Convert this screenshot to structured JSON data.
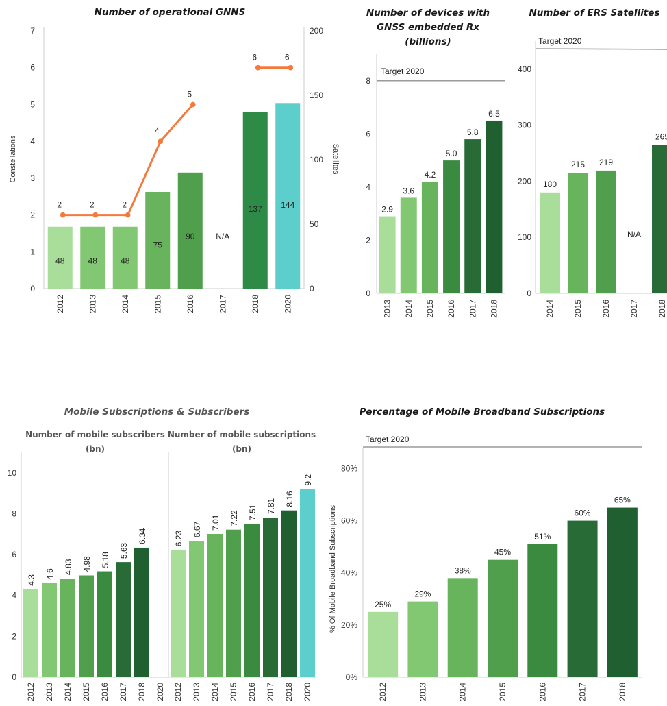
{
  "colors": {
    "shades": [
      "#a8dd9a",
      "#82c872",
      "#67b45c",
      "#4f9f4c",
      "#3a8a40",
      "#286b36",
      "#1f5f30"
    ],
    "green_dark": "#2e8b47",
    "teal": "#5ccfcc",
    "orange": "#f47a3c",
    "target_line": "#9a9a9a",
    "axis": "#cccccc"
  },
  "chart_data": [
    {
      "id": "gnns",
      "type": "bar",
      "title": "Number of operational GNNS",
      "ylabel": "Constellations",
      "y2label": "Satellites",
      "categories": [
        "2012",
        "2013",
        "2014",
        "2015",
        "2016",
        "2017",
        "2018",
        "2020"
      ],
      "ylim": [
        0,
        7
      ],
      "yticks": [
        "0",
        "1",
        "2",
        "3",
        "4",
        "5",
        "6",
        "7"
      ],
      "y2lim": [
        0,
        200
      ],
      "y2ticks": [
        "0",
        "50",
        "100",
        "150",
        "200"
      ],
      "bar_series": {
        "axis": "right",
        "values": [
          48,
          48,
          48,
          75,
          90,
          null,
          137,
          144
        ],
        "labels": [
          "48",
          "48",
          "48",
          "75",
          "90",
          "N/A",
          "137",
          "144"
        ]
      },
      "line_series": {
        "axis": "left",
        "values": [
          2,
          2,
          2,
          4,
          5,
          null,
          6,
          6
        ],
        "labels": [
          "2",
          "2",
          "2",
          "4",
          "5",
          "",
          "6",
          "6"
        ]
      }
    },
    {
      "id": "devices",
      "type": "bar",
      "title_lines": [
        "Number of devices with",
        "GNSS embedded Rx",
        "(billions)"
      ],
      "categories": [
        "2013",
        "2014",
        "2015",
        "2016",
        "2017",
        "2018"
      ],
      "values": [
        2.9,
        3.6,
        4.2,
        5.0,
        5.8,
        6.5
      ],
      "labels": [
        "2.9",
        "3.6",
        "4.2",
        "5.0",
        "5.8",
        "6.5"
      ],
      "ylim": [
        0,
        9
      ],
      "yticks": [
        "0",
        "2",
        "4",
        "6",
        "8"
      ],
      "target": {
        "label": "Target 2020",
        "value": 8
      }
    },
    {
      "id": "ers",
      "type": "bar",
      "title": "Number of ERS Satellites",
      "categories": [
        "2014",
        "2015",
        "2016",
        "2017",
        "2018"
      ],
      "values": [
        180,
        215,
        219,
        null,
        265
      ],
      "labels": [
        "180",
        "215",
        "219",
        "N/A",
        "265"
      ],
      "ylim": [
        0,
        450
      ],
      "yticks": [
        "0",
        "100",
        "200",
        "300",
        "400"
      ],
      "target": {
        "label": "Target 2020"
      }
    },
    {
      "id": "mobile",
      "type": "bar",
      "title": "Mobile Subscriptions & Subscribers",
      "ylim": [
        0,
        11
      ],
      "yticks": [
        "0",
        "2",
        "4",
        "6",
        "8",
        "10"
      ],
      "panels": [
        {
          "title_lines": [
            "Number of mobile subscribers",
            "(bn)"
          ],
          "categories": [
            "2012",
            "2013",
            "2014",
            "2015",
            "2016",
            "2017",
            "2018",
            "2020"
          ],
          "values": [
            4.3,
            4.6,
            4.83,
            4.98,
            5.18,
            5.63,
            6.34,
            null
          ],
          "labels": [
            "4.3",
            "4.6",
            "4.83",
            "4.98",
            "5.18",
            "5.63",
            "6.34",
            ""
          ]
        },
        {
          "title_lines": [
            "Number of mobile subscriptions",
            "(bn)"
          ],
          "categories": [
            "2012",
            "2013",
            "2014",
            "2015",
            "2016",
            "2017",
            "2018",
            "2020"
          ],
          "values": [
            6.23,
            6.67,
            7.01,
            7.22,
            7.51,
            7.81,
            8.16,
            9.2
          ],
          "labels": [
            "6.23",
            "6.67",
            "7.01",
            "7.22",
            "7.51",
            "7.81",
            "8.16",
            "9.2"
          ]
        }
      ]
    },
    {
      "id": "broadband",
      "type": "bar",
      "title": "Percentage of Mobile Broadband Subscriptions",
      "ylabel": "% Of Mobile Broadband Subscriptions",
      "categories": [
        "2012",
        "2013",
        "2014",
        "2015",
        "2016",
        "2017",
        "2018"
      ],
      "values": [
        25,
        29,
        38,
        45,
        51,
        60,
        65
      ],
      "labels": [
        "25%",
        "29%",
        "38%",
        "45%",
        "51%",
        "60%",
        "65%"
      ],
      "ylim": [
        0,
        88
      ],
      "yticks": [
        "0%",
        "20%",
        "40%",
        "60%",
        "80%"
      ],
      "target": {
        "label": "Target 2020"
      }
    }
  ]
}
